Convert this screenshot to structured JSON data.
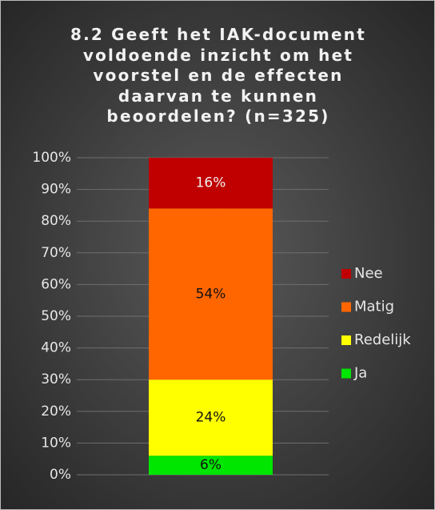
{
  "chart_data": {
    "type": "stacked_bar",
    "title": "8.2 Geeft het IAK-document voldoende inzicht om het voorstel en de effecten daarvan te kunnen beoordelen? (n=325)",
    "categories": [
      null
    ],
    "series": [
      {
        "name": "Ja",
        "color": "#00e600",
        "values": [
          6
        ],
        "value_labels": [
          "6%"
        ]
      },
      {
        "name": "Redelijk",
        "color": "#ffff00",
        "values": [
          24
        ],
        "value_labels": [
          "24%"
        ]
      },
      {
        "name": "Matig",
        "color": "#ff6600",
        "values": [
          54
        ],
        "value_labels": [
          "54%"
        ]
      },
      {
        "name": "Nee",
        "color": "#c00000",
        "values": [
          16
        ],
        "value_labels": [
          "16%"
        ]
      }
    ],
    "ylim": [
      0,
      100
    ],
    "yticks": [
      {
        "value": 0,
        "label": "0%"
      },
      {
        "value": 10,
        "label": "10%"
      },
      {
        "value": 20,
        "label": "20%"
      },
      {
        "value": 30,
        "label": "30%"
      },
      {
        "value": 40,
        "label": "40%"
      },
      {
        "value": 50,
        "label": "50%"
      },
      {
        "value": 60,
        "label": "60%"
      },
      {
        "value": 70,
        "label": "70%"
      },
      {
        "value": 80,
        "label": "80%"
      },
      {
        "value": 90,
        "label": "90%"
      },
      {
        "value": 100,
        "label": "100%"
      }
    ],
    "grid": true,
    "legend": "right"
  }
}
